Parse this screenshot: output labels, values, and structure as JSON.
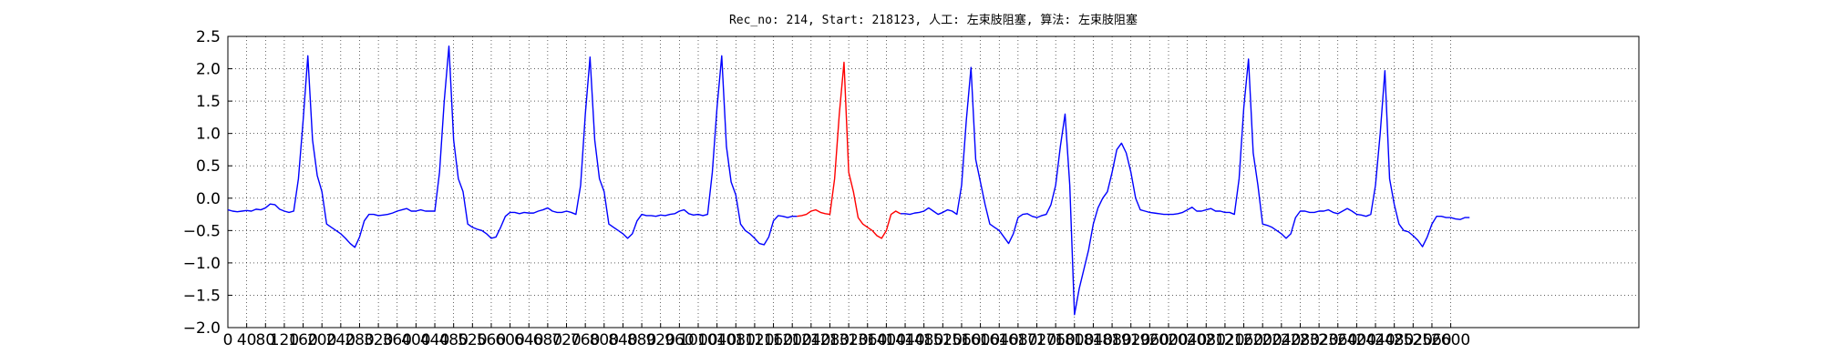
{
  "chart_data": {
    "type": "line",
    "title": "Rec_no: 214, Start: 218123, 人工: 左束肢阻塞, 算法: 左束肢阻塞",
    "xlim": [
      0,
      3000
    ],
    "ylim": [
      -2,
      2.5
    ],
    "grid": true,
    "xticks": [
      0,
      40,
      80,
      120,
      160,
      200,
      240,
      280,
      320,
      360,
      400,
      440,
      480,
      520,
      560,
      600,
      640,
      680,
      720,
      760,
      800,
      840,
      880,
      920,
      960,
      1000,
      1040,
      1080,
      1120,
      1160,
      1200,
      1240,
      1280,
      1320,
      1360,
      1400,
      1440,
      1480,
      1520,
      1560,
      1600,
      1640,
      1680,
      1720,
      1760,
      1800,
      1840,
      1880,
      1920,
      1960,
      2000,
      2040,
      2080,
      2120,
      2160,
      2200,
      2240,
      2280,
      2320,
      2360,
      2400,
      2440,
      2480,
      2520,
      2560,
      2600
    ],
    "yticks": [
      {
        "value": -2,
        "label": "−2.0"
      },
      {
        "value": -1.5,
        "label": "−1.5"
      },
      {
        "value": -1,
        "label": "−1.0"
      },
      {
        "value": -0.5,
        "label": "−0.5"
      },
      {
        "value": 0,
        "label": "0.0"
      },
      0.5,
      {
        "value": 1,
        "label": "1.0"
      },
      1.5,
      {
        "value": 2,
        "label": "2.0"
      },
      2.5
    ],
    "series": [
      {
        "color": "#0000ff",
        "x": [
          0,
          10,
          20,
          30,
          40,
          50,
          60,
          70,
          80,
          90,
          100,
          110,
          120,
          130,
          140,
          150,
          160,
          170,
          180,
          190,
          200,
          210,
          220,
          230,
          240,
          250,
          260,
          270,
          280,
          290,
          300,
          310,
          320,
          330,
          340,
          350,
          360,
          370,
          380,
          390,
          400,
          410,
          420,
          430,
          440,
          450,
          460,
          470,
          480,
          490,
          500,
          510,
          520,
          530,
          540,
          550,
          560,
          570,
          580,
          590,
          600,
          610,
          620,
          630,
          640,
          650,
          660,
          670,
          680,
          690,
          700,
          710,
          720,
          730,
          740,
          750,
          760,
          770,
          780,
          790,
          800,
          810,
          820,
          830,
          840,
          850,
          860,
          870,
          880,
          890,
          900,
          910,
          920,
          930,
          940,
          950,
          960,
          970,
          980,
          990,
          1000,
          1010,
          1020,
          1030,
          1040,
          1050,
          1060,
          1070,
          1080,
          1090,
          1100,
          1110,
          1120,
          1130,
          1140,
          1150,
          1160,
          1170,
          1180,
          1190,
          1200,
          1210,
          1220,
          1230,
          1240,
          1250,
          1260,
          1270,
          1280,
          1290,
          1300,
          1310,
          1320,
          1330,
          1340,
          1350,
          1360,
          1370,
          1380,
          1390,
          1400,
          1410,
          1420,
          1430,
          1440,
          1450,
          1460,
          1470,
          1480,
          1490,
          1500,
          1510,
          1520,
          1530,
          1540,
          1550,
          1560,
          1570,
          1580,
          1590,
          1600,
          1610,
          1620,
          1630,
          1640,
          1650,
          1660,
          1670,
          1680,
          1690,
          1700,
          1710,
          1720,
          1730,
          1740,
          1750,
          1760,
          1770,
          1780,
          1790,
          1800,
          1810,
          1820,
          1830,
          1840,
          1850,
          1860,
          1870,
          1880,
          1890,
          1900,
          1910,
          1920,
          1930,
          1940,
          1950,
          1960,
          1970,
          1980,
          1990,
          2000,
          2010,
          2020,
          2030,
          2040,
          2050,
          2060,
          2070,
          2080,
          2090,
          2100,
          2110,
          2120,
          2130,
          2140,
          2150,
          2160,
          2170,
          2180,
          2190,
          2200,
          2210,
          2220,
          2230,
          2240,
          2250,
          2260,
          2270,
          2280,
          2290,
          2300,
          2310,
          2320,
          2330,
          2340,
          2350,
          2360,
          2370,
          2380,
          2390,
          2400,
          2410,
          2420,
          2430,
          2440,
          2450,
          2460,
          2470,
          2480,
          2490,
          2500,
          2510,
          2520,
          2530,
          2540,
          2550,
          2560,
          2570,
          2580,
          2590,
          2600,
          2610,
          2620,
          2630,
          2640
        ],
        "values": [
          -0.18,
          -0.2,
          -0.21,
          -0.2,
          -0.19,
          -0.2,
          -0.17,
          -0.18,
          -0.15,
          -0.09,
          -0.1,
          -0.17,
          -0.2,
          -0.22,
          -0.2,
          0.3,
          1.2,
          2.2,
          0.9,
          0.35,
          0.1,
          -0.4,
          -0.45,
          -0.5,
          -0.55,
          -0.62,
          -0.7,
          -0.76,
          -0.6,
          -0.35,
          -0.25,
          -0.25,
          -0.27,
          -0.26,
          -0.25,
          -0.23,
          -0.2,
          -0.18,
          -0.16,
          -0.2,
          -0.2,
          -0.18,
          -0.2,
          -0.2,
          -0.2,
          0.4,
          1.5,
          2.35,
          0.9,
          0.3,
          0.1,
          -0.4,
          -0.45,
          -0.48,
          -0.5,
          -0.55,
          -0.62,
          -0.6,
          -0.45,
          -0.28,
          -0.22,
          -0.22,
          -0.24,
          -0.22,
          -0.23,
          -0.23,
          -0.2,
          -0.18,
          -0.15,
          -0.2,
          -0.22,
          -0.22,
          -0.2,
          -0.22,
          -0.25,
          0.2,
          1.3,
          2.18,
          0.9,
          0.3,
          0.1,
          -0.4,
          -0.45,
          -0.5,
          -0.55,
          -0.62,
          -0.55,
          -0.35,
          -0.25,
          -0.27,
          -0.27,
          -0.28,
          -0.26,
          -0.27,
          -0.25,
          -0.24,
          -0.2,
          -0.18,
          -0.24,
          -0.26,
          -0.25,
          -0.27,
          -0.25,
          0.4,
          1.4,
          2.2,
          0.8,
          0.25,
          0.05,
          -0.4,
          -0.5,
          -0.55,
          -0.62,
          -0.7,
          -0.72,
          -0.6,
          -0.35,
          -0.27,
          -0.28,
          -0.3,
          -0.28,
          -0.28,
          null,
          null,
          null,
          null,
          null,
          null,
          null,
          null,
          null,
          null,
          null,
          null,
          null,
          null,
          null,
          null,
          null,
          null,
          null,
          null,
          null,
          -0.24,
          -0.24,
          -0.25,
          -0.23,
          -0.22,
          -0.2,
          -0.15,
          -0.2,
          -0.25,
          -0.22,
          -0.18,
          -0.2,
          -0.25,
          0.2,
          1.2,
          2.02,
          0.6,
          0.25,
          -0.1,
          -0.4,
          -0.45,
          -0.5,
          -0.6,
          -0.7,
          -0.55,
          -0.3,
          -0.25,
          -0.24,
          -0.28,
          -0.3,
          -0.27,
          -0.25,
          -0.1,
          0.2,
          0.8,
          1.3,
          0.2,
          -1.8,
          -1.4,
          -1.1,
          -0.8,
          -0.4,
          -0.15,
          0.0,
          0.1,
          0.4,
          0.75,
          0.85,
          0.7,
          0.4,
          0.0,
          -0.18,
          -0.2,
          -0.22,
          -0.23,
          -0.24,
          -0.25,
          -0.25,
          -0.25,
          -0.24,
          -0.22,
          -0.18,
          -0.14,
          -0.2,
          -0.2,
          -0.18,
          -0.16,
          -0.2,
          -0.2,
          -0.22,
          -0.22,
          -0.25,
          0.3,
          1.4,
          2.15,
          0.7,
          0.2,
          -0.4,
          -0.42,
          -0.45,
          -0.5,
          -0.55,
          -0.62,
          -0.55,
          -0.3,
          -0.2,
          -0.2,
          -0.22,
          -0.22,
          -0.2,
          -0.2,
          -0.18,
          -0.22,
          -0.24,
          -0.2,
          -0.16,
          -0.2,
          -0.25,
          -0.26,
          -0.28,
          -0.25,
          0.2,
          1.0,
          1.97,
          0.3,
          -0.1,
          -0.4,
          -0.5,
          -0.52,
          -0.58,
          -0.65,
          -0.75,
          -0.6,
          -0.4,
          -0.28,
          -0.28,
          -0.3,
          -0.3,
          -0.32,
          -0.33,
          -0.3,
          -0.3
        ]
      },
      {
        "color": "#ff0000",
        "x": [
          1210,
          1220,
          1230,
          1240,
          1250,
          1260,
          1270,
          1280,
          1290,
          1300,
          1310,
          1320,
          1330,
          1340,
          1350,
          1360,
          1370,
          1380,
          1390,
          1400,
          1410,
          1420,
          1430
        ],
        "values": [
          -0.28,
          -0.27,
          -0.25,
          -0.2,
          -0.18,
          -0.22,
          -0.24,
          -0.25,
          0.3,
          1.3,
          2.1,
          0.4,
          0.1,
          -0.3,
          -0.4,
          -0.45,
          -0.5,
          -0.58,
          -0.62,
          -0.5,
          -0.25,
          -0.2,
          -0.24
        ]
      }
    ]
  }
}
